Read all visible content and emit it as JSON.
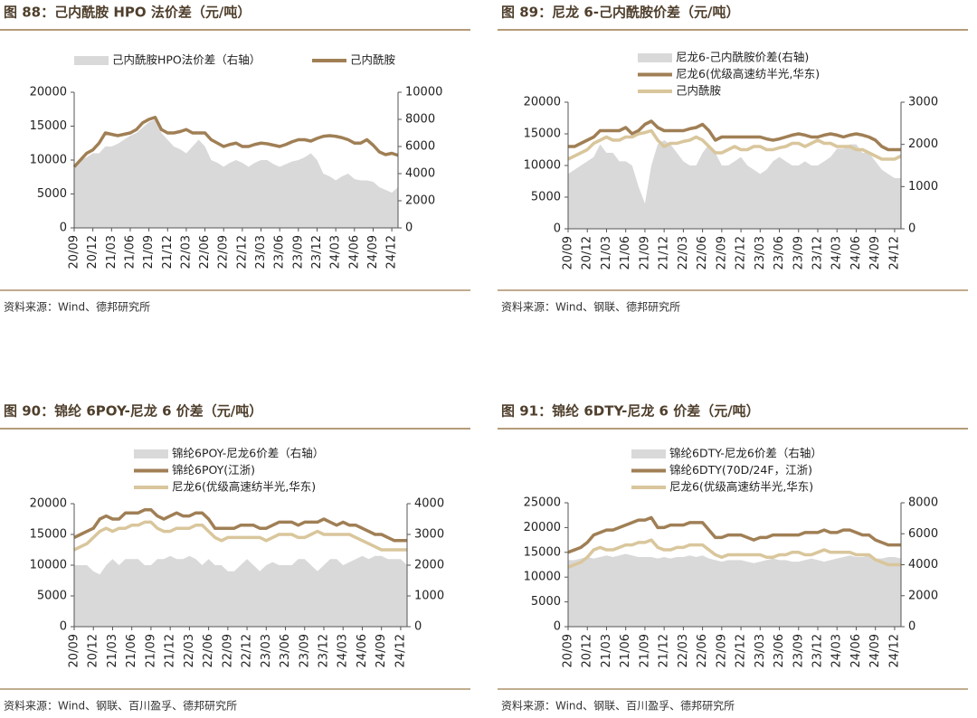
{
  "chart_data": [
    {
      "type": "line",
      "title": "图 88：己内酰胺 HPO 法价差（元/吨）",
      "source": "资料来源：Wind、德邦研究所",
      "categories": [
        "20/09",
        null,
        null,
        "20/12",
        null,
        null,
        "21/03",
        null,
        null,
        "21/06",
        null,
        null,
        "21/09",
        null,
        null,
        "21/12",
        null,
        null,
        "22/03",
        null,
        null,
        "22/06",
        null,
        null,
        "22/09",
        null,
        null,
        "22/12",
        null,
        null,
        "23/03",
        null,
        null,
        "23/06",
        null,
        null,
        "23/09",
        null,
        null,
        "23/12",
        null,
        null,
        "24/03",
        null,
        null,
        "24/06",
        null,
        null,
        "24/09",
        null,
        null,
        "24/12",
        null
      ],
      "ylim": [
        0,
        20000
      ],
      "yticks": [
        0,
        5000,
        10000,
        15000,
        20000
      ],
      "y2lim": [
        0,
        10000
      ],
      "y2ticks": [
        0,
        2000,
        4000,
        6000,
        8000,
        10000
      ],
      "series": [
        {
          "name": "己内酰胺HPO法价差（右轴）",
          "type": "area",
          "axis": "y2",
          "color": "#d9d9d9",
          "values": [
            4500,
            5000,
            5200,
            5500,
            5500,
            6000,
            6000,
            6200,
            6500,
            6800,
            7000,
            7400,
            7800,
            8000,
            7000,
            6500,
            6000,
            5800,
            5500,
            6000,
            6500,
            6000,
            5000,
            4800,
            4500,
            4800,
            5000,
            4800,
            4500,
            4800,
            5000,
            5000,
            4700,
            4500,
            4700,
            4900,
            5000,
            5200,
            5500,
            5000,
            4000,
            3800,
            3500,
            3800,
            4000,
            3600,
            3500,
            3500,
            3400,
            3000,
            2800,
            2600,
            3000
          ]
        },
        {
          "name": "己内酰胺",
          "type": "line",
          "color": "#a07f55",
          "values": [
            9000,
            10000,
            11000,
            11500,
            12500,
            14000,
            13800,
            13600,
            13800,
            14000,
            14500,
            15500,
            16000,
            16300,
            14500,
            14000,
            14000,
            14200,
            14500,
            14000,
            14000,
            14000,
            13000,
            12500,
            12000,
            12300,
            12500,
            12000,
            12000,
            12300,
            12500,
            12400,
            12200,
            12000,
            12300,
            12700,
            13000,
            13000,
            12800,
            13200,
            13500,
            13600,
            13500,
            13300,
            13000,
            12500,
            12500,
            13000,
            12200,
            11200,
            10800,
            11000,
            10700
          ]
        }
      ]
    },
    {
      "type": "line",
      "title": "图 89：尼龙 6-己内酰胺价差（元/吨）",
      "source": "资料来源：Wind、钢联、德邦研究所",
      "categories": [
        "20/09",
        null,
        null,
        "20/12",
        null,
        null,
        "21/03",
        null,
        null,
        "21/06",
        null,
        null,
        "21/09",
        null,
        null,
        "21/12",
        null,
        null,
        "22/03",
        null,
        null,
        "22/06",
        null,
        null,
        "22/09",
        null,
        null,
        "22/12",
        null,
        null,
        "23/03",
        null,
        null,
        "23/06",
        null,
        null,
        "23/09",
        null,
        null,
        "23/12",
        null,
        null,
        "24/03",
        null,
        null,
        "24/06",
        null,
        null,
        "24/09",
        null,
        null,
        "24/12",
        null
      ],
      "ylim": [
        0,
        20000
      ],
      "yticks": [
        0,
        5000,
        10000,
        15000,
        20000
      ],
      "y2lim": [
        0,
        3000
      ],
      "y2ticks": [
        0,
        1000,
        2000,
        3000
      ],
      "series": [
        {
          "name": "尼龙6-己内酰胺价差(右轴)",
          "type": "area",
          "axis": "y2",
          "color": "#d9d9d9",
          "values": [
            1300,
            1400,
            1500,
            1600,
            1700,
            2000,
            1800,
            1800,
            1600,
            1600,
            1500,
            1000,
            600,
            1500,
            2000,
            2100,
            2000,
            1800,
            1600,
            1500,
            1500,
            1800,
            2000,
            1800,
            1500,
            1500,
            1600,
            1700,
            1500,
            1400,
            1300,
            1400,
            1600,
            1700,
            1600,
            1500,
            1500,
            1600,
            1500,
            1500,
            1600,
            1700,
            1900,
            1900,
            2000,
            2000,
            1800,
            1800,
            1600,
            1400,
            1300,
            1200,
            1200
          ]
        },
        {
          "name": "尼龙6(优级高速纺半光,华东)",
          "type": "line",
          "color": "#a07f55",
          "values": [
            13000,
            13000,
            13500,
            14000,
            14500,
            15500,
            15500,
            15500,
            15500,
            16000,
            15000,
            15500,
            16500,
            17000,
            16000,
            15500,
            15500,
            15500,
            15500,
            15800,
            16000,
            16500,
            15500,
            14000,
            14500,
            14500,
            14500,
            14500,
            14500,
            14500,
            14500,
            14200,
            14000,
            14200,
            14500,
            14800,
            15000,
            14800,
            14500,
            14500,
            14800,
            15000,
            14800,
            14500,
            14800,
            15000,
            14800,
            14500,
            14000,
            13000,
            12500,
            12500,
            12500
          ]
        },
        {
          "name": "己内酰胺",
          "type": "line",
          "color": "#d9c69c",
          "values": [
            11000,
            11500,
            12000,
            12500,
            13500,
            14000,
            14500,
            14000,
            14000,
            14500,
            14500,
            15000,
            15200,
            15500,
            14000,
            13000,
            13500,
            13500,
            13800,
            14000,
            14500,
            14000,
            13000,
            12000,
            12000,
            12500,
            13000,
            12500,
            12500,
            13000,
            13000,
            12500,
            12500,
            12800,
            13000,
            13500,
            13500,
            13000,
            13500,
            14000,
            13500,
            13500,
            13000,
            13000,
            13000,
            12500,
            12500,
            12000,
            11500,
            11000,
            11000,
            11000,
            11500
          ]
        }
      ]
    },
    {
      "type": "line",
      "title": "图 90：锦纶 6POY-尼龙 6 价差（元/吨）",
      "source": "资料来源：Wind、钢联、百川盈孚、德邦研究所",
      "categories": [
        "20/09",
        null,
        null,
        "20/12",
        null,
        null,
        "21/03",
        null,
        null,
        "21/06",
        null,
        null,
        "21/09",
        null,
        null,
        "21/12",
        null,
        null,
        "22/03",
        null,
        null,
        "22/06",
        null,
        null,
        "22/09",
        null,
        null,
        "22/12",
        null,
        null,
        "23/03",
        null,
        null,
        "23/06",
        null,
        null,
        "23/09",
        null,
        null,
        "23/12",
        null,
        null,
        "24/03",
        null,
        null,
        "24/06",
        null,
        null,
        "24/09",
        null,
        null,
        "24/12",
        null
      ],
      "ylim": [
        0,
        20000
      ],
      "yticks": [
        0,
        5000,
        10000,
        15000,
        20000
      ],
      "y2lim": [
        0,
        4000
      ],
      "y2ticks": [
        0,
        1000,
        2000,
        3000,
        4000
      ],
      "series": [
        {
          "name": "锦纶6POY-尼龙6价差（右轴）",
          "type": "area",
          "axis": "y2",
          "color": "#d9d9d9",
          "values": [
            2000,
            2000,
            2000,
            1800,
            1700,
            2000,
            2200,
            2000,
            2200,
            2200,
            2200,
            2000,
            2000,
            2200,
            2200,
            2300,
            2200,
            2200,
            2300,
            2200,
            2000,
            2200,
            2000,
            2000,
            1800,
            1800,
            2000,
            2200,
            2000,
            1800,
            2000,
            2100,
            2000,
            2000,
            2000,
            2200,
            2200,
            2000,
            1800,
            2000,
            2200,
            2200,
            2000,
            2100,
            2200,
            2300,
            2200,
            2300,
            2300,
            2200,
            2200,
            2200,
            2000
          ]
        },
        {
          "name": "锦纶6POY(江浙)",
          "type": "line",
          "color": "#a07f55",
          "values": [
            14500,
            15000,
            15500,
            16000,
            17500,
            18000,
            17500,
            17500,
            18500,
            18500,
            18500,
            19000,
            19000,
            18000,
            17500,
            18000,
            18500,
            18000,
            18000,
            18500,
            18500,
            17500,
            16000,
            16000,
            16000,
            16000,
            16500,
            16500,
            16500,
            16000,
            16000,
            16500,
            17000,
            17000,
            17000,
            16500,
            17000,
            17000,
            17000,
            17500,
            17000,
            16500,
            17000,
            16500,
            16500,
            16000,
            15500,
            15000,
            15000,
            14500,
            14000,
            14000,
            14000
          ]
        },
        {
          "name": "尼龙6(优级高速纺半光,华东)",
          "type": "line",
          "color": "#d9c69c",
          "values": [
            12500,
            13000,
            13500,
            14500,
            15500,
            16000,
            15500,
            16000,
            16000,
            16500,
            16500,
            17000,
            17000,
            16000,
            15500,
            15500,
            16000,
            16000,
            16000,
            16500,
            16500,
            15500,
            14500,
            14000,
            14500,
            14500,
            14500,
            14500,
            14500,
            14500,
            14000,
            14500,
            15000,
            15000,
            15000,
            14500,
            14500,
            15000,
            15500,
            15000,
            15000,
            15000,
            15000,
            15000,
            14500,
            14000,
            13500,
            13000,
            12500,
            12500,
            12500,
            12500,
            12500
          ]
        }
      ]
    },
    {
      "type": "line",
      "title": "图 91：锦纶 6DTY-尼龙 6 价差（元/吨）",
      "source": "资料来源：Wind、钢联、百川盈孚、德邦研究所",
      "categories": [
        "20/09",
        null,
        null,
        "20/12",
        null,
        null,
        "21/03",
        null,
        null,
        "21/06",
        null,
        null,
        "21/09",
        null,
        null,
        "21/12",
        null,
        null,
        "22/03",
        null,
        null,
        "22/06",
        null,
        null,
        "22/09",
        null,
        null,
        "22/12",
        null,
        null,
        "23/03",
        null,
        null,
        "23/06",
        null,
        null,
        "23/09",
        null,
        null,
        "23/12",
        null,
        null,
        "24/03",
        null,
        null,
        "24/06",
        null,
        null,
        "24/09",
        null,
        null,
        "24/12",
        null
      ],
      "ylim": [
        0,
        25000
      ],
      "yticks": [
        0,
        5000,
        10000,
        15000,
        20000,
        25000
      ],
      "y2lim": [
        0,
        8000
      ],
      "y2ticks": [
        0,
        2000,
        4000,
        6000,
        8000
      ],
      "series": [
        {
          "name": "锦纶6DTY-尼龙6价差（右轴）",
          "type": "area",
          "axis": "y2",
          "color": "#d9d9d9",
          "values": [
            4300,
            4300,
            4400,
            4500,
            4400,
            4500,
            4600,
            4500,
            4600,
            4700,
            4600,
            4500,
            4500,
            4500,
            4400,
            4500,
            4400,
            4500,
            4500,
            4600,
            4500,
            4600,
            4400,
            4300,
            4200,
            4300,
            4300,
            4300,
            4200,
            4100,
            4200,
            4300,
            4400,
            4300,
            4300,
            4200,
            4200,
            4300,
            4400,
            4300,
            4200,
            4300,
            4400,
            4500,
            4600,
            4500,
            4500,
            4600,
            4400,
            4400,
            4500,
            4500,
            4400
          ]
        },
        {
          "name": "锦纶6DTY(70D/24F，江浙)",
          "type": "line",
          "color": "#a07f55",
          "values": [
            15000,
            15500,
            16000,
            17000,
            18500,
            19000,
            19500,
            19500,
            20000,
            20500,
            21000,
            21500,
            21500,
            22000,
            20000,
            20000,
            20500,
            20500,
            20500,
            21000,
            21000,
            21000,
            19500,
            18000,
            18000,
            18500,
            18500,
            18500,
            18000,
            17500,
            18000,
            18000,
            18500,
            18500,
            18500,
            18500,
            18500,
            19000,
            19000,
            19000,
            19500,
            19000,
            19000,
            19500,
            19500,
            19000,
            18500,
            18500,
            17500,
            17000,
            16500,
            16500,
            16500
          ]
        },
        {
          "name": "尼龙6(优级高速纺半光,华东)",
          "type": "line",
          "color": "#d9c69c",
          "values": [
            12000,
            12500,
            13000,
            14000,
            15500,
            16000,
            15500,
            15500,
            16000,
            16500,
            16500,
            17000,
            17000,
            17500,
            16000,
            15500,
            15500,
            16000,
            16000,
            16500,
            16500,
            16500,
            15500,
            14500,
            14000,
            14500,
            14500,
            14500,
            14500,
            14500,
            14500,
            14000,
            14000,
            14500,
            14500,
            15000,
            15000,
            14500,
            14500,
            15000,
            15500,
            15000,
            15000,
            15000,
            15000,
            14500,
            14500,
            14500,
            13500,
            13000,
            12500,
            12500,
            12500
          ]
        }
      ]
    }
  ]
}
